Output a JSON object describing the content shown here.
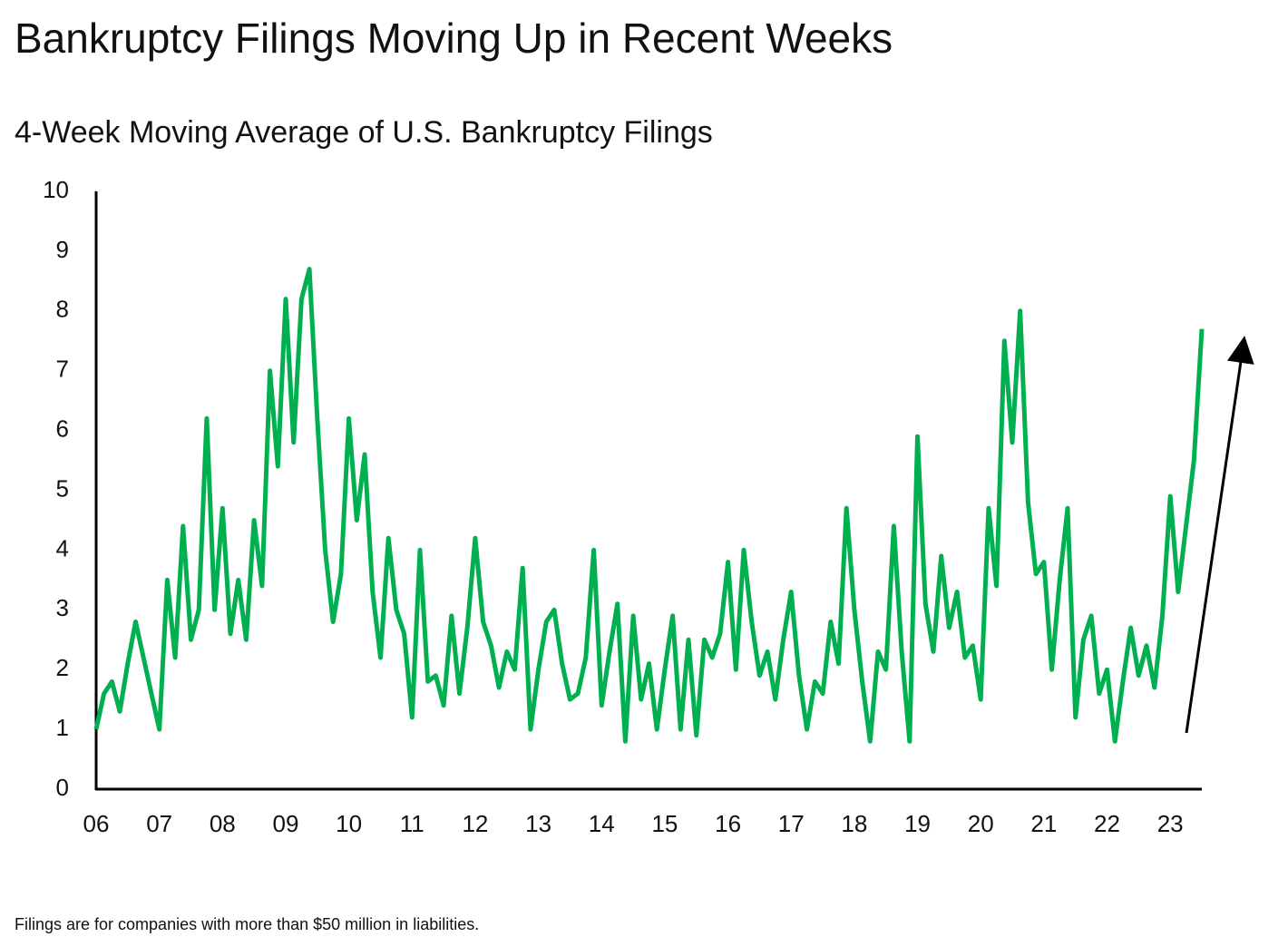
{
  "chart_data": {
    "type": "line",
    "title": "Bankruptcy Filings Moving Up in Recent Weeks",
    "subtitle": "4-Week Moving Average of U.S. Bankruptcy Filings",
    "footnote": "Filings are for companies with more than $50 million in liabilities.",
    "x": [
      2006,
      2006.125,
      2006.25,
      2006.375,
      2006.5,
      2006.625,
      2006.75,
      2006.875,
      2007,
      2007.125,
      2007.25,
      2007.375,
      2007.5,
      2007.625,
      2007.75,
      2007.875,
      2008,
      2008.125,
      2008.25,
      2008.375,
      2008.5,
      2008.625,
      2008.75,
      2008.875,
      2009,
      2009.125,
      2009.25,
      2009.375,
      2009.5,
      2009.625,
      2009.75,
      2009.875,
      2010,
      2010.125,
      2010.25,
      2010.375,
      2010.5,
      2010.625,
      2010.75,
      2010.875,
      2011,
      2011.125,
      2011.25,
      2011.375,
      2011.5,
      2011.625,
      2011.75,
      2011.875,
      2012,
      2012.125,
      2012.25,
      2012.375,
      2012.5,
      2012.625,
      2012.75,
      2012.875,
      2013,
      2013.125,
      2013.25,
      2013.375,
      2013.5,
      2013.625,
      2013.75,
      2013.875,
      2014,
      2014.125,
      2014.25,
      2014.375,
      2014.5,
      2014.625,
      2014.75,
      2014.875,
      2015,
      2015.125,
      2015.25,
      2015.375,
      2015.5,
      2015.625,
      2015.75,
      2015.875,
      2016,
      2016.125,
      2016.25,
      2016.375,
      2016.5,
      2016.625,
      2016.75,
      2016.875,
      2017,
      2017.125,
      2017.25,
      2017.375,
      2017.5,
      2017.625,
      2017.75,
      2017.875,
      2018,
      2018.125,
      2018.25,
      2018.375,
      2018.5,
      2018.625,
      2018.75,
      2018.875,
      2019,
      2019.125,
      2019.25,
      2019.375,
      2019.5,
      2019.625,
      2019.75,
      2019.875,
      2020,
      2020.125,
      2020.25,
      2020.375,
      2020.5,
      2020.625,
      2020.75,
      2020.875,
      2021,
      2021.125,
      2021.25,
      2021.375,
      2021.5,
      2021.625,
      2021.75,
      2021.875,
      2022,
      2022.125,
      2022.25,
      2022.375,
      2022.5,
      2022.625,
      2022.75,
      2022.875,
      2023,
      2023.125,
      2023.25,
      2023.375,
      2023.5
    ],
    "series": [
      {
        "color": "#00b050",
        "values": [
          1.0,
          1.6,
          1.8,
          1.3,
          2.1,
          2.8,
          2.2,
          1.6,
          1.0,
          3.5,
          2.2,
          4.4,
          2.5,
          3.0,
          6.2,
          3.0,
          4.7,
          2.6,
          3.5,
          2.5,
          4.5,
          3.4,
          7.0,
          5.4,
          8.2,
          5.8,
          8.2,
          8.7,
          6.2,
          4.0,
          2.8,
          3.6,
          6.2,
          4.5,
          5.6,
          3.3,
          2.2,
          4.2,
          3.0,
          2.6,
          1.2,
          4.0,
          1.8,
          1.9,
          1.4,
          2.9,
          1.6,
          2.7,
          4.2,
          2.8,
          2.4,
          1.7,
          2.3,
          2.0,
          3.7,
          1.0,
          2.0,
          2.8,
          3.0,
          2.1,
          1.5,
          1.6,
          2.2,
          4.0,
          1.4,
          2.3,
          3.1,
          0.8,
          2.9,
          1.5,
          2.1,
          1.0,
          2.0,
          2.9,
          1.0,
          2.5,
          0.9,
          2.5,
          2.2,
          2.6,
          3.8,
          2.0,
          4.0,
          2.8,
          1.9,
          2.3,
          1.5,
          2.5,
          3.3,
          1.9,
          1.0,
          1.8,
          1.6,
          2.8,
          2.1,
          4.7,
          3.0,
          1.8,
          0.8,
          2.3,
          2.0,
          4.4,
          2.3,
          0.8,
          5.9,
          3.1,
          2.3,
          3.9,
          2.7,
          3.3,
          2.2,
          2.4,
          1.5,
          4.7,
          3.4,
          7.5,
          5.8,
          8.0,
          4.8,
          3.6,
          3.8,
          2.0,
          3.5,
          4.7,
          1.2,
          2.5,
          2.9,
          1.6,
          2.0,
          0.8,
          1.8,
          2.7,
          1.9,
          2.4,
          1.7,
          2.9,
          4.9,
          3.3,
          4.4,
          5.5,
          7.7
        ]
      }
    ],
    "xlim": [
      2006,
      2023.5
    ],
    "xticks": [
      {
        "value": 2006,
        "label": "06"
      },
      {
        "value": 2007,
        "label": "07"
      },
      {
        "value": 2008,
        "label": "08"
      },
      {
        "value": 2009,
        "label": "09"
      },
      {
        "value": 2010,
        "label": "10"
      },
      {
        "value": 2011,
        "label": "11"
      },
      {
        "value": 2012,
        "label": "12"
      },
      {
        "value": 2013,
        "label": "13"
      },
      {
        "value": 2014,
        "label": "14"
      },
      {
        "value": 2015,
        "label": "15"
      },
      {
        "value": 2016,
        "label": "16"
      },
      {
        "value": 2017,
        "label": "17"
      },
      {
        "value": 2018,
        "label": "18"
      },
      {
        "value": 2019,
        "label": "19"
      },
      {
        "value": 2020,
        "label": "20"
      },
      {
        "value": 2021,
        "label": "21"
      },
      {
        "value": 2022,
        "label": "22"
      },
      {
        "value": 2023,
        "label": "23"
      }
    ],
    "ylim": [
      0,
      10
    ],
    "yticks": [
      0,
      1,
      2,
      3,
      4,
      5,
      6,
      7,
      8,
      9,
      10
    ]
  }
}
